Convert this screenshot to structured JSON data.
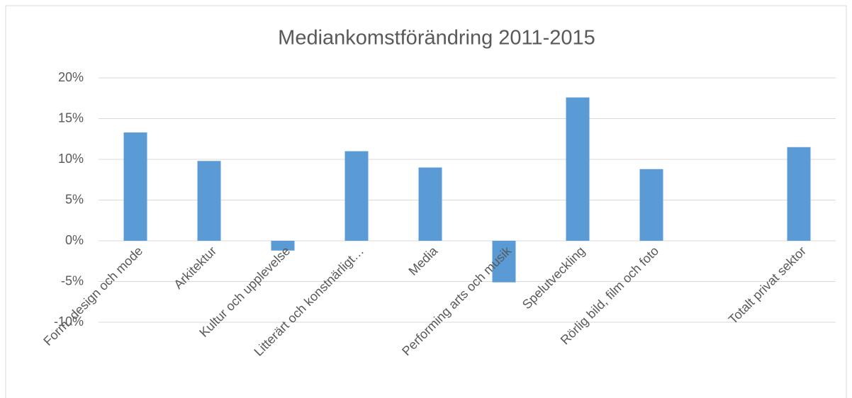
{
  "chart_data": {
    "type": "bar",
    "title": "Mediankomstförändring 2011-2015",
    "categories": [
      "Form, design och mode",
      "Arkitektur",
      "Kultur och upplevelse",
      "Litterärt och konstnärligt…",
      "Media",
      "Performing arts och musik",
      "Spelutveckling",
      "Rörlig bild, film och foto",
      null,
      "Totalt privat sektor"
    ],
    "values": [
      13.3,
      9.8,
      -1.2,
      11.0,
      9.0,
      -5.1,
      17.6,
      8.8,
      null,
      11.5
    ],
    "color": "#5b9bd5",
    "ylim": [
      -10,
      20
    ],
    "yticks": [
      {
        "value": -10,
        "label": "-10%"
      },
      {
        "value": -5,
        "label": "-5%"
      },
      {
        "value": 0,
        "label": "0%"
      },
      {
        "value": 5,
        "label": "5%"
      },
      {
        "value": 10,
        "label": "10%"
      },
      {
        "value": 15,
        "label": "15%"
      },
      {
        "value": 20,
        "label": "20%"
      }
    ],
    "grid": true
  }
}
